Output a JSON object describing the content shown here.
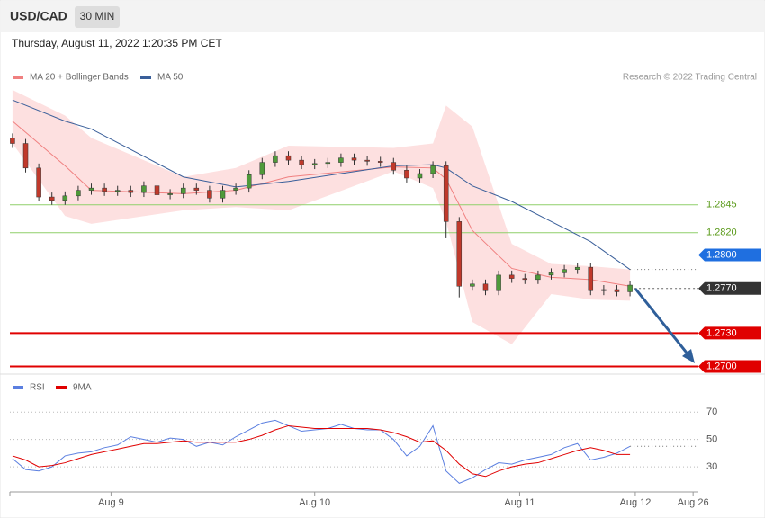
{
  "header": {
    "symbol": "USD/CAD",
    "timeframe": "30 MIN",
    "datetime": "Thursday, August 11, 2022 1:20:35 PM CET",
    "copyright": "Research © 2022 Trading Central"
  },
  "chart_data": [
    {
      "type": "candlestick",
      "up_color": "#4f9a3a",
      "down_color": "#c0392b",
      "xlim": [
        -0.2,
        52.2
      ],
      "ylim": [
        1.2694,
        1.2948
      ],
      "open": [
        1.2905,
        1.29,
        1.2878,
        1.2852,
        1.2849,
        1.2853,
        1.2858,
        1.286,
        1.2857,
        1.2858,
        1.2856,
        1.2862,
        1.2854,
        1.2855,
        1.286,
        1.2858,
        1.2851,
        1.2858,
        1.286,
        1.2872,
        1.2883,
        1.2889,
        1.2885,
        1.2881,
        1.2882,
        1.2883,
        1.2887,
        1.2885,
        1.2884,
        1.2883,
        1.2876,
        1.2869,
        1.2873,
        1.288,
        1.283,
        1.2772,
        1.2774,
        1.2768,
        1.2782,
        1.2779,
        1.2778,
        1.2782,
        1.2784,
        1.2787,
        1.2789,
        1.2768,
        1.2769,
        1.2767
      ],
      "high": [
        1.2909,
        1.2904,
        1.2882,
        1.2856,
        1.2857,
        1.2862,
        1.2864,
        1.2864,
        1.2862,
        1.2862,
        1.2866,
        1.2866,
        1.2859,
        1.2864,
        1.2864,
        1.2862,
        1.2862,
        1.2864,
        1.2876,
        1.2887,
        1.2893,
        1.2893,
        1.2889,
        1.2886,
        1.2887,
        1.2891,
        1.2891,
        1.2889,
        1.2888,
        1.2887,
        1.288,
        1.2877,
        1.2884,
        1.2884,
        1.2834,
        1.2778,
        1.2778,
        1.2786,
        1.2786,
        1.2783,
        1.2786,
        1.2788,
        1.2791,
        1.2793,
        1.2793,
        1.2773,
        1.2773,
        1.2777
      ],
      "low": [
        1.2896,
        1.2874,
        1.2848,
        1.2845,
        1.2845,
        1.2849,
        1.2854,
        1.2853,
        1.2853,
        1.2852,
        1.2852,
        1.285,
        1.285,
        1.2851,
        1.2854,
        1.2847,
        1.2847,
        1.2854,
        1.2856,
        1.2868,
        1.2879,
        1.2881,
        1.2877,
        1.2877,
        1.2878,
        1.2879,
        1.2881,
        1.288,
        1.2879,
        1.2872,
        1.2865,
        1.2865,
        1.2869,
        1.2815,
        1.2762,
        1.2768,
        1.2764,
        1.2764,
        1.2775,
        1.2774,
        1.2774,
        1.2778,
        1.278,
        1.2783,
        1.2764,
        1.2764,
        1.2763,
        1.2763
      ],
      "close": [
        1.29,
        1.2878,
        1.2852,
        1.2849,
        1.2853,
        1.2858,
        1.286,
        1.2857,
        1.2858,
        1.2856,
        1.2862,
        1.2854,
        1.2855,
        1.286,
        1.2858,
        1.2851,
        1.2858,
        1.286,
        1.2872,
        1.2883,
        1.2889,
        1.2885,
        1.2881,
        1.2882,
        1.2883,
        1.2887,
        1.2885,
        1.2884,
        1.2883,
        1.2876,
        1.2869,
        1.2873,
        1.288,
        1.283,
        1.2772,
        1.2774,
        1.2768,
        1.2782,
        1.2779,
        1.2778,
        1.2782,
        1.2784,
        1.2787,
        1.2789,
        1.2768,
        1.2769,
        1.2767,
        1.2773
      ],
      "indicator_x": [
        0,
        4,
        6,
        13,
        17,
        21,
        29,
        32,
        33,
        35,
        38,
        41,
        44,
        47
      ],
      "bands": {
        "name": "MA 20 + Bollinger Bands",
        "color": "#f08080",
        "fill": "#fde0e0",
        "upper": [
          1.2948,
          1.2925,
          1.2905,
          1.287,
          1.2878,
          1.2898,
          1.2896,
          1.29,
          1.2934,
          1.2915,
          1.281,
          1.2792,
          1.279,
          1.2787
        ],
        "lower": [
          1.29,
          1.2835,
          1.2828,
          1.284,
          1.2843,
          1.284,
          1.2875,
          1.286,
          1.283,
          1.274,
          1.272,
          1.2765,
          1.276,
          1.2759
        ],
        "values": [
          1.292,
          1.288,
          1.2858,
          1.2855,
          1.2858,
          1.287,
          1.2879,
          1.2878,
          1.2868,
          1.2822,
          1.2788,
          1.278,
          1.2778,
          1.2772
        ]
      },
      "series": [
        {
          "name": "MA 50",
          "color": "#3a5f9a",
          "values": [
            1.2939,
            1.292,
            1.2913,
            1.287,
            1.2861,
            1.2866,
            1.288,
            1.2881,
            1.2878,
            1.2862,
            1.2848,
            1.283,
            1.2812,
            1.2787
          ]
        }
      ],
      "levels": [
        {
          "price": 1.2845,
          "color": "#8fcf6a",
          "width": 1,
          "box": false,
          "text_color": "#5a9a1a"
        },
        {
          "price": {
            "value": 1.282,
            "label": "1.2820"
          },
          "color": "#8fcf6a",
          "width": 1,
          "box": false,
          "text_color": "#5a9a1a"
        },
        {
          "price": {
            "value": 1.28,
            "label": "1.2800"
          },
          "color": "#2a5a9a",
          "width": 1,
          "box": true,
          "box_color": "#1f6fe0"
        },
        {
          "price": {
            "value": 1.277,
            "label": "1.2770"
          },
          "color": "#666",
          "width": 1,
          "dotted": true,
          "box": true,
          "box_color": "#333"
        },
        {
          "price": {
            "value": 1.273,
            "label": "1.2730"
          },
          "color": "#e00000",
          "width": 2,
          "box": true,
          "box_color": "#e00000"
        },
        {
          "price": {
            "value": 1.27,
            "label": "1.2700"
          },
          "color": "#e00000",
          "width": 2,
          "box": true,
          "box_color": "#e00000"
        }
      ]
    },
    {
      "type": "line",
      "xlim": [
        -0.2,
        52.2
      ],
      "ylim": [
        13,
        80
      ],
      "yticks": [
        70,
        50,
        30
      ],
      "xticks": [
        {
          "value": 7.5,
          "label": "Aug 9"
        },
        {
          "value": 23,
          "label": "Aug 10"
        },
        {
          "value": 38.6,
          "label": "Aug 11"
        },
        {
          "value": 47.4,
          "label": "Aug 12"
        },
        {
          "value": 51.8,
          "label": "Aug 26"
        }
      ],
      "series": [
        {
          "name": "RSI",
          "color": "#5b7fe0",
          "values": [
            36,
            28,
            27,
            30,
            38,
            40,
            41,
            44,
            46,
            52,
            50,
            48,
            51,
            50,
            45,
            48,
            46,
            52,
            57,
            62,
            64,
            60,
            56,
            57,
            58,
            61,
            58,
            57,
            57,
            50,
            38,
            45,
            60,
            27,
            18,
            22,
            28,
            33,
            32,
            35,
            37,
            39,
            44,
            47,
            35,
            37,
            40,
            45
          ]
        },
        {
          "name": "9MA",
          "color": "#e00000",
          "values": [
            38,
            35,
            30,
            31,
            33,
            36,
            39,
            41,
            43,
            45,
            47,
            47,
            48,
            49,
            48,
            48,
            48,
            48,
            50,
            53,
            57,
            60,
            59,
            58,
            58,
            58,
            58,
            58,
            57,
            55,
            52,
            48,
            49,
            42,
            32,
            25,
            23,
            27,
            30,
            32,
            33,
            36,
            39,
            42,
            44,
            42,
            39,
            39
          ]
        }
      ]
    }
  ]
}
